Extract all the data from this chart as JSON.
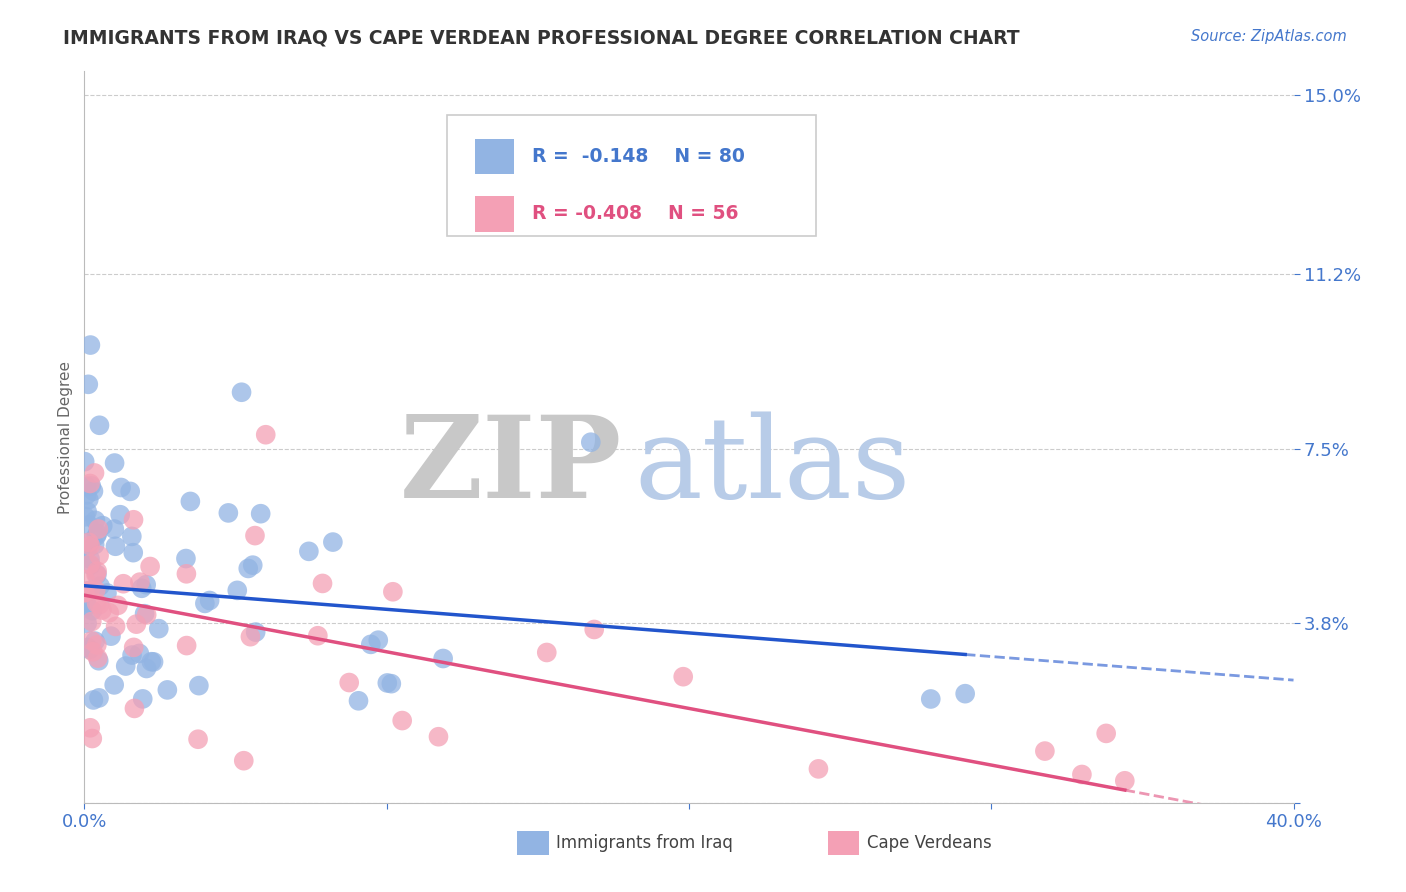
{
  "title": "IMMIGRANTS FROM IRAQ VS CAPE VERDEAN PROFESSIONAL DEGREE CORRELATION CHART",
  "source_text": "Source: ZipAtlas.com",
  "ylabel": "Professional Degree",
  "xlim": [
    0.0,
    0.4
  ],
  "ylim": [
    0.0,
    0.155
  ],
  "yticks": [
    0.0,
    0.038,
    0.075,
    0.112,
    0.15
  ],
  "ytick_labels": [
    "",
    "3.8%",
    "7.5%",
    "11.2%",
    "15.0%"
  ],
  "xticks": [
    0.0,
    0.1,
    0.2,
    0.3,
    0.4
  ],
  "xtick_labels": [
    "0.0%",
    "",
    "",
    "",
    "40.0%"
  ],
  "legend_r1": "R =  -0.148",
  "legend_n1": "N = 80",
  "legend_r2": "R = -0.408",
  "legend_n2": "N = 56",
  "series1_color": "#92b4e3",
  "series2_color": "#f4a0b5",
  "trend1_color": "#2255cc",
  "trend2_color": "#e05080",
  "watermark_zip_color": "#c8c8c8",
  "watermark_atlas_color": "#b8cce8",
  "background_color": "#ffffff",
  "grid_color": "#cccccc",
  "title_color": "#333333",
  "axis_label_color": "#4477cc",
  "legend_r1_color": "#4477cc",
  "legend_r2_color": "#e05080"
}
